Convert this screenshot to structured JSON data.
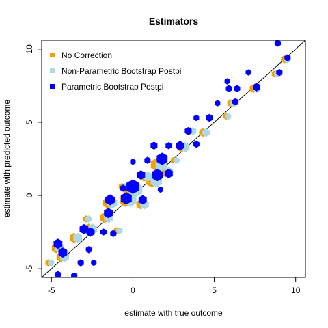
{
  "chart_data": {
    "type": "scatter",
    "title": "Estimators",
    "xlabel": "estimate with true outcome",
    "ylabel": "estimate with predicted outcome",
    "xlim": [
      -5.6,
      10.6
    ],
    "ylim": [
      -5.6,
      10.6
    ],
    "x_ticks": [
      -5,
      0,
      5,
      10
    ],
    "y_ticks": [
      -5,
      0,
      5,
      10
    ],
    "x_tick_labels": [
      "-5",
      "0",
      "5",
      "10"
    ],
    "y_tick_labels": [
      "-5",
      "0",
      "5",
      "10"
    ],
    "reference_line": {
      "slope": 1,
      "intercept": 0,
      "color": "#000000"
    },
    "legend": {
      "position": "top-left",
      "entries": [
        {
          "label": "No Correction",
          "color": "#F5A000"
        },
        {
          "label": "Non-Parametric Bootstrap Postpi",
          "color": "#ADD8E6"
        },
        {
          "label": "Parametric Bootstrap Postpi",
          "color": "#0000FF"
        }
      ]
    },
    "series": [
      {
        "name": "No Correction",
        "color": "#F5A000",
        "points": [
          {
            "x": -5.1,
            "y": -4.6,
            "s": 0.5
          },
          {
            "x": -4.6,
            "y": -3.6,
            "s": 0.9
          },
          {
            "x": -4.3,
            "y": -4.2,
            "s": 0.9
          },
          {
            "x": -3.5,
            "y": -2.9,
            "s": 0.9
          },
          {
            "x": -2.8,
            "y": -1.6,
            "s": 0.5
          },
          {
            "x": -2.6,
            "y": -2.3,
            "s": 1.0
          },
          {
            "x": -1.6,
            "y": -1.5,
            "s": 1.0
          },
          {
            "x": -1.4,
            "y": -0.5,
            "s": 1.1
          },
          {
            "x": -0.9,
            "y": -2.4,
            "s": 0.5
          },
          {
            "x": -0.6,
            "y": 0.6,
            "s": 0.5
          },
          {
            "x": -0.3,
            "y": -0.3,
            "s": 1.4
          },
          {
            "x": 0.0,
            "y": 0.4,
            "s": 1.6
          },
          {
            "x": 0.6,
            "y": -0.6,
            "s": 0.9
          },
          {
            "x": 0.8,
            "y": 1.3,
            "s": 0.9
          },
          {
            "x": 1.3,
            "y": 1.0,
            "s": 1.3
          },
          {
            "x": 1.6,
            "y": 2.1,
            "s": 1.3
          },
          {
            "x": 2.1,
            "y": 1.6,
            "s": 0.9
          },
          {
            "x": 2.6,
            "y": 2.4,
            "s": 0.5
          },
          {
            "x": 3.1,
            "y": 3.3,
            "s": 0.9
          },
          {
            "x": 3.6,
            "y": 4.4,
            "s": 0.6
          },
          {
            "x": 4.4,
            "y": 4.3,
            "s": 0.7
          },
          {
            "x": 5.8,
            "y": 5.4,
            "s": 0.4
          },
          {
            "x": 6.1,
            "y": 6.3,
            "s": 0.6
          },
          {
            "x": 7.5,
            "y": 7.3,
            "s": 0.7
          },
          {
            "x": 8.8,
            "y": 8.3,
            "s": 0.5
          },
          {
            "x": 9.4,
            "y": 9.3,
            "s": 0.6
          }
        ]
      },
      {
        "name": "Non-Parametric Bootstrap Postpi",
        "color": "#ADD8E6",
        "points": [
          {
            "x": -5.1,
            "y": -4.6,
            "s": 0.5
          },
          {
            "x": -4.6,
            "y": -3.6,
            "s": 0.9
          },
          {
            "x": -4.3,
            "y": -4.2,
            "s": 0.9
          },
          {
            "x": -3.5,
            "y": -2.9,
            "s": 0.9
          },
          {
            "x": -2.8,
            "y": -1.6,
            "s": 0.5
          },
          {
            "x": -2.6,
            "y": -2.3,
            "s": 1.0
          },
          {
            "x": -1.6,
            "y": -1.5,
            "s": 1.0
          },
          {
            "x": -1.4,
            "y": -0.5,
            "s": 1.1
          },
          {
            "x": -0.9,
            "y": -2.4,
            "s": 0.5
          },
          {
            "x": -0.6,
            "y": 0.6,
            "s": 0.5
          },
          {
            "x": -0.3,
            "y": -0.3,
            "s": 1.4
          },
          {
            "x": 0.0,
            "y": 0.4,
            "s": 1.6
          },
          {
            "x": 0.6,
            "y": -0.6,
            "s": 0.9
          },
          {
            "x": 0.8,
            "y": 1.3,
            "s": 0.9
          },
          {
            "x": 1.3,
            "y": 1.0,
            "s": 1.3
          },
          {
            "x": 1.6,
            "y": 2.1,
            "s": 1.3
          },
          {
            "x": 2.1,
            "y": 1.6,
            "s": 0.9
          },
          {
            "x": 2.6,
            "y": 2.4,
            "s": 0.5
          },
          {
            "x": 3.1,
            "y": 3.3,
            "s": 0.9
          },
          {
            "x": 3.6,
            "y": 4.4,
            "s": 0.6
          },
          {
            "x": 4.4,
            "y": 4.3,
            "s": 0.7
          },
          {
            "x": 5.8,
            "y": 5.4,
            "s": 0.4
          },
          {
            "x": 6.1,
            "y": 6.3,
            "s": 0.6
          },
          {
            "x": 7.5,
            "y": 7.3,
            "s": 0.7
          },
          {
            "x": 8.8,
            "y": 8.3,
            "s": 0.5
          },
          {
            "x": 9.4,
            "y": 9.3,
            "s": 0.6
          }
        ]
      },
      {
        "name": "Parametric Bootstrap Postpi",
        "color": "#0000FF",
        "points": [
          {
            "x": -4.6,
            "y": -3.3,
            "s": 0.9
          },
          {
            "x": -4.3,
            "y": -3.9,
            "s": 0.9
          },
          {
            "x": -4.6,
            "y": -5.4,
            "s": 0.5
          },
          {
            "x": -3.6,
            "y": -5.5,
            "s": 0.5
          },
          {
            "x": -3.0,
            "y": -2.3,
            "s": 0.9
          },
          {
            "x": -3.2,
            "y": -4.6,
            "s": 0.5
          },
          {
            "x": -2.4,
            "y": -4.6,
            "s": 0.4
          },
          {
            "x": -2.7,
            "y": -3.7,
            "s": 0.5
          },
          {
            "x": -2.6,
            "y": -2.5,
            "s": 0.8
          },
          {
            "x": -1.8,
            "y": -2.5,
            "s": 0.5
          },
          {
            "x": -1.5,
            "y": -1.2,
            "s": 0.9
          },
          {
            "x": -1.4,
            "y": -0.3,
            "s": 1.0
          },
          {
            "x": -1.2,
            "y": -2.6,
            "s": 0.5
          },
          {
            "x": -0.6,
            "y": 0.5,
            "s": 0.5
          },
          {
            "x": -0.4,
            "y": -0.2,
            "s": 1.2
          },
          {
            "x": 0.0,
            "y": 0.6,
            "s": 1.5
          },
          {
            "x": 0.0,
            "y": 2.3,
            "s": 0.4
          },
          {
            "x": 0.6,
            "y": -0.3,
            "s": 0.8
          },
          {
            "x": 0.5,
            "y": 1.4,
            "s": 0.8
          },
          {
            "x": 0.9,
            "y": 2.4,
            "s": 0.5
          },
          {
            "x": 1.3,
            "y": 3.4,
            "s": 0.6
          },
          {
            "x": 1.5,
            "y": 1.4,
            "s": 1.2
          },
          {
            "x": 1.8,
            "y": 2.5,
            "s": 1.2
          },
          {
            "x": 2.2,
            "y": 1.5,
            "s": 0.8
          },
          {
            "x": 2.2,
            "y": 3.4,
            "s": 0.5
          },
          {
            "x": 1.7,
            "y": 0.4,
            "s": 0.4
          },
          {
            "x": 2.9,
            "y": 3.4,
            "s": 0.8
          },
          {
            "x": 3.4,
            "y": 4.4,
            "s": 0.6
          },
          {
            "x": 3.9,
            "y": 3.5,
            "s": 0.5
          },
          {
            "x": 3.9,
            "y": 5.3,
            "s": 0.4
          },
          {
            "x": 4.7,
            "y": 5.3,
            "s": 0.6
          },
          {
            "x": 5.2,
            "y": 6.3,
            "s": 0.4
          },
          {
            "x": 5.9,
            "y": 7.3,
            "s": 0.5
          },
          {
            "x": 6.3,
            "y": 6.4,
            "s": 0.5
          },
          {
            "x": 6.4,
            "y": 7.3,
            "s": 0.5
          },
          {
            "x": 5.8,
            "y": 7.8,
            "s": 0.4
          },
          {
            "x": 7.1,
            "y": 8.4,
            "s": 0.4
          },
          {
            "x": 7.6,
            "y": 7.4,
            "s": 0.7
          },
          {
            "x": 8.9,
            "y": 10.4,
            "s": 0.5
          },
          {
            "x": 9.0,
            "y": 8.4,
            "s": 0.5
          },
          {
            "x": 9.5,
            "y": 9.4,
            "s": 0.5
          }
        ]
      }
    ]
  }
}
